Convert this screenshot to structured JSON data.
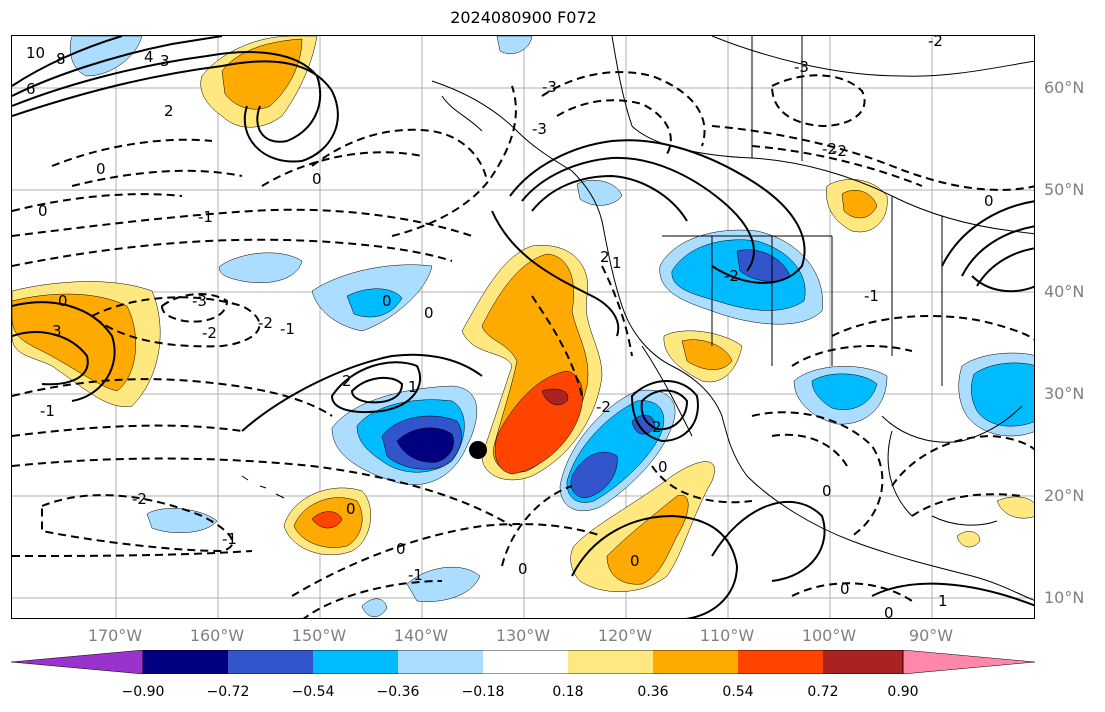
{
  "title": "2024080900 F072",
  "lat_labels": [
    "60°N",
    "50°N",
    "40°N",
    "30°N",
    "20°N",
    "10°N"
  ],
  "lon_labels": [
    "170°W",
    "160°W",
    "150°W",
    "140°W",
    "130°W",
    "120°W",
    "110°W",
    "100°W",
    "90°W"
  ],
  "colorbar": {
    "colors": [
      "#9933cc",
      "#000080",
      "#3355cc",
      "#00bbff",
      "#aaddff",
      "#ffffff",
      "#ffe880",
      "#ffaa00",
      "#ff4400",
      "#aa2222",
      "#ff88aa"
    ],
    "tick_labels": [
      "−0.90",
      "−0.72",
      "−0.54",
      "−0.36",
      "−0.18",
      "0.18",
      "0.36",
      "0.54",
      "0.72",
      "0.90"
    ]
  },
  "contour_labels": [
    "10",
    "8",
    "6",
    "4",
    "3",
    "2",
    "1",
    "0",
    "-1",
    "-2",
    "-3"
  ],
  "marker": {
    "lon": -134.5,
    "lat": 24.3
  }
}
